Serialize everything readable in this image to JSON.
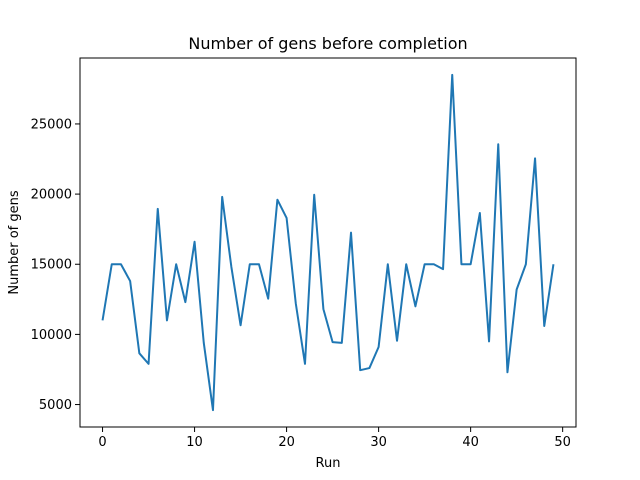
{
  "chart_data": {
    "type": "line",
    "title": "Number of gens before completion",
    "xlabel": "Run",
    "ylabel": "Number of gens",
    "xlim": [
      -2.45,
      51.45
    ],
    "ylim": [
      3400,
      29700
    ],
    "xticks": [
      0,
      10,
      20,
      30,
      40,
      50
    ],
    "yticks": [
      5000,
      10000,
      15000,
      20000,
      25000
    ],
    "grid": false,
    "legend": "none",
    "series": [
      {
        "color": "#1f77b4",
        "x": [
          0,
          1,
          2,
          3,
          4,
          5,
          6,
          7,
          8,
          9,
          10,
          11,
          12,
          13,
          14,
          15,
          16,
          17,
          18,
          19,
          20,
          21,
          22,
          23,
          24,
          25,
          26,
          27,
          28,
          29,
          30,
          31,
          32,
          33,
          34,
          35,
          36,
          37,
          38,
          39,
          40,
          41,
          42,
          43,
          44,
          45,
          46,
          47,
          48,
          49
        ],
        "values": [
          11000,
          15000,
          15000,
          13800,
          8650,
          7900,
          18950,
          11000,
          15000,
          12300,
          16600,
          9400,
          4600,
          19800,
          14800,
          10650,
          15000,
          15000,
          12550,
          19600,
          18300,
          12200,
          7900,
          19950,
          11800,
          9450,
          9400,
          17250,
          7450,
          7600,
          9100,
          15000,
          9550,
          15000,
          12000,
          15000,
          15000,
          14650,
          28500,
          15000,
          15000,
          18650,
          9500,
          23550,
          7300,
          13200,
          15000,
          22550,
          10600,
          15000
        ]
      }
    ]
  }
}
